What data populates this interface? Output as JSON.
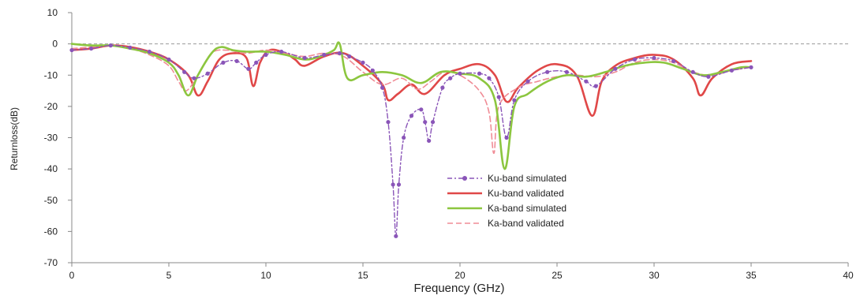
{
  "chart_data": {
    "type": "line",
    "xlabel": "Frequency (GHz)",
    "ylabel": "Returnloss(dB)",
    "xlim": [
      0,
      40
    ],
    "ylim": [
      -70,
      10
    ],
    "x_ticks": [
      "0",
      "5",
      "10",
      "15",
      "20",
      "25",
      "30",
      "35",
      "40"
    ],
    "y_ticks": [
      "10",
      "0",
      "-10",
      "-20",
      "-30",
      "-40",
      "-50",
      "-60",
      "-70"
    ],
    "grid": false,
    "reference_line": 0,
    "legend_position": "bottom-center",
    "series": [
      {
        "name": "Ku-band simulated",
        "color": "#8a55b8",
        "style": "dash-dot-markers",
        "points": [
          [
            0,
            -2
          ],
          [
            1,
            -1.5
          ],
          [
            2,
            -0.5
          ],
          [
            3,
            -1.2
          ],
          [
            4,
            -2.5
          ],
          [
            5,
            -5
          ],
          [
            5.8,
            -9
          ],
          [
            6.3,
            -11
          ],
          [
            7,
            -9.5
          ],
          [
            7.8,
            -6
          ],
          [
            8.5,
            -5.5
          ],
          [
            9.1,
            -8
          ],
          [
            9.5,
            -6
          ],
          [
            10,
            -3.5
          ],
          [
            10.8,
            -2.5
          ],
          [
            12,
            -4.5
          ],
          [
            13,
            -3.5
          ],
          [
            13.8,
            -3
          ],
          [
            14.3,
            -4
          ],
          [
            15,
            -6
          ],
          [
            15.5,
            -8.5
          ],
          [
            16,
            -14
          ],
          [
            16.3,
            -25
          ],
          [
            16.55,
            -45
          ],
          [
            16.7,
            -61.5
          ],
          [
            16.85,
            -45
          ],
          [
            17.1,
            -30
          ],
          [
            17.5,
            -23
          ],
          [
            18,
            -21
          ],
          [
            18.2,
            -25
          ],
          [
            18.4,
            -31
          ],
          [
            18.6,
            -25
          ],
          [
            19.1,
            -14
          ],
          [
            19.5,
            -11
          ],
          [
            20,
            -9.5
          ],
          [
            21,
            -9.5
          ],
          [
            21.5,
            -11
          ],
          [
            22,
            -17
          ],
          [
            22.4,
            -30
          ],
          [
            22.8,
            -18
          ],
          [
            23.5,
            -12
          ],
          [
            24.5,
            -9
          ],
          [
            25.5,
            -9
          ],
          [
            26.5,
            -12
          ],
          [
            27,
            -13.5
          ],
          [
            28,
            -8
          ],
          [
            29,
            -5
          ],
          [
            30,
            -4.5
          ],
          [
            31,
            -5.5
          ],
          [
            32,
            -9
          ],
          [
            32.8,
            -10.5
          ],
          [
            34,
            -8.5
          ],
          [
            35,
            -7.5
          ]
        ]
      },
      {
        "name": "Ku-band validated",
        "color": "#e04848",
        "style": "solid",
        "points": [
          [
            0,
            -2
          ],
          [
            1,
            -1.5
          ],
          [
            2,
            -0.5
          ],
          [
            3,
            -1
          ],
          [
            4,
            -2.5
          ],
          [
            5,
            -5
          ],
          [
            6,
            -10
          ],
          [
            6.5,
            -16.5
          ],
          [
            7,
            -12
          ],
          [
            7.6,
            -5
          ],
          [
            8.3,
            -3
          ],
          [
            9,
            -4.5
          ],
          [
            9.35,
            -13.5
          ],
          [
            9.7,
            -6
          ],
          [
            10.2,
            -2
          ],
          [
            11,
            -3
          ],
          [
            11.5,
            -5
          ],
          [
            12,
            -7
          ],
          [
            13,
            -4
          ],
          [
            14,
            -3
          ],
          [
            15,
            -7
          ],
          [
            16,
            -13
          ],
          [
            16.3,
            -18
          ],
          [
            16.8,
            -16
          ],
          [
            17.5,
            -13
          ],
          [
            18.2,
            -16
          ],
          [
            19.2,
            -10
          ],
          [
            20,
            -8
          ],
          [
            21,
            -6.5
          ],
          [
            21.8,
            -10
          ],
          [
            22.4,
            -18.5
          ],
          [
            23,
            -14
          ],
          [
            24,
            -8.5
          ],
          [
            25,
            -6.5
          ],
          [
            26,
            -10
          ],
          [
            26.8,
            -23
          ],
          [
            27.3,
            -12
          ],
          [
            28,
            -7
          ],
          [
            29,
            -4.5
          ],
          [
            30,
            -3.5
          ],
          [
            31,
            -5
          ],
          [
            32,
            -11
          ],
          [
            32.4,
            -16.5
          ],
          [
            33,
            -11
          ],
          [
            34,
            -6.5
          ],
          [
            35,
            -5.5
          ]
        ]
      },
      {
        "name": "Ka-band simulated",
        "color": "#8cc63f",
        "style": "solid",
        "points": [
          [
            0,
            0
          ],
          [
            1,
            -0.5
          ],
          [
            2,
            -0.5
          ],
          [
            3,
            -1.5
          ],
          [
            4,
            -3
          ],
          [
            5,
            -6
          ],
          [
            5.5,
            -10
          ],
          [
            6,
            -16.5
          ],
          [
            6.5,
            -10
          ],
          [
            7.2,
            -3
          ],
          [
            7.7,
            -1
          ],
          [
            8.3,
            -2
          ],
          [
            9,
            -2.5
          ],
          [
            10,
            -2.5
          ],
          [
            11,
            -3.5
          ],
          [
            12,
            -5
          ],
          [
            12.8,
            -4
          ],
          [
            13.5,
            -2
          ],
          [
            13.8,
            0
          ],
          [
            14.2,
            -11
          ],
          [
            15,
            -10
          ],
          [
            16,
            -9
          ],
          [
            17,
            -10
          ],
          [
            18,
            -12.5
          ],
          [
            19,
            -9
          ],
          [
            20,
            -9.5
          ],
          [
            21,
            -11
          ],
          [
            21.8,
            -18
          ],
          [
            22.3,
            -40
          ],
          [
            22.8,
            -20
          ],
          [
            23.5,
            -16
          ],
          [
            24.5,
            -12
          ],
          [
            25.5,
            -10
          ],
          [
            26.5,
            -10.5
          ],
          [
            27.5,
            -9
          ],
          [
            28.5,
            -7
          ],
          [
            29.5,
            -6
          ],
          [
            30.5,
            -6
          ],
          [
            31.5,
            -8
          ],
          [
            32.5,
            -10
          ],
          [
            33.5,
            -9
          ],
          [
            34.5,
            -7.5
          ],
          [
            35,
            -7.5
          ]
        ]
      },
      {
        "name": "Ka-band validated",
        "color": "#f08c96",
        "style": "dashed",
        "points": [
          [
            0,
            -1.5
          ],
          [
            1,
            -1
          ],
          [
            2,
            -0.5
          ],
          [
            3,
            -1.5
          ],
          [
            4,
            -3.5
          ],
          [
            5,
            -7
          ],
          [
            5.5,
            -12
          ],
          [
            5.9,
            -15
          ],
          [
            6.5,
            -10
          ],
          [
            7.2,
            -3
          ],
          [
            8,
            -2
          ],
          [
            9,
            -3
          ],
          [
            10,
            -2
          ],
          [
            11,
            -3
          ],
          [
            12,
            -4
          ],
          [
            13,
            -3
          ],
          [
            14,
            -4
          ],
          [
            15,
            -9
          ],
          [
            16,
            -13
          ],
          [
            17,
            -11
          ],
          [
            17.8,
            -14.5
          ],
          [
            18.5,
            -12
          ],
          [
            19.2,
            -9
          ],
          [
            20,
            -10
          ],
          [
            21,
            -15
          ],
          [
            21.5,
            -22
          ],
          [
            21.75,
            -35
          ],
          [
            22,
            -20
          ],
          [
            23,
            -14
          ],
          [
            24,
            -12
          ],
          [
            25,
            -10.5
          ],
          [
            26,
            -10
          ],
          [
            27,
            -10.5
          ],
          [
            28,
            -9
          ],
          [
            29,
            -6
          ],
          [
            30,
            -5
          ],
          [
            31,
            -6
          ],
          [
            32,
            -9
          ],
          [
            33,
            -10
          ],
          [
            34,
            -8.5
          ],
          [
            35,
            -7.5
          ]
        ]
      }
    ]
  }
}
